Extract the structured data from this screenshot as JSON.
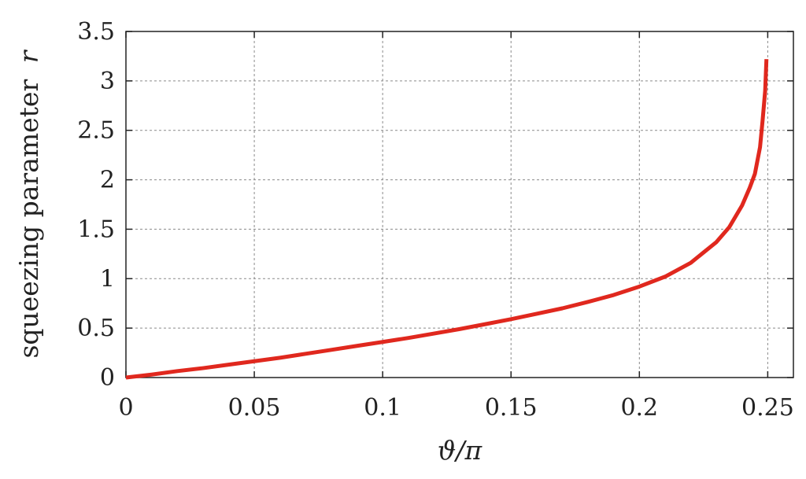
{
  "chart_data": {
    "type": "line",
    "title": "",
    "xlabel": "ϑ/π",
    "ylabel_main": "squeezing parameter",
    "ylabel_symbol": "r",
    "xlim": [
      0,
      0.26
    ],
    "ylim": [
      0,
      3.5
    ],
    "grid": true,
    "x_ticks": [
      "0",
      "0.05",
      "0.1",
      "0.15",
      "0.2",
      "0.25"
    ],
    "y_ticks": [
      "0",
      "0.5",
      "1",
      "1.5",
      "2",
      "2.5",
      "3",
      "3.5"
    ],
    "series": [
      {
        "color": "#e0281e",
        "x": [
          0,
          0.01,
          0.02,
          0.03,
          0.04,
          0.05,
          0.06,
          0.07,
          0.08,
          0.09,
          0.1,
          0.11,
          0.12,
          0.13,
          0.14,
          0.15,
          0.16,
          0.17,
          0.18,
          0.19,
          0.2,
          0.21,
          0.22,
          0.23,
          0.235,
          0.24,
          0.243,
          0.245,
          0.247,
          0.248,
          0.249,
          0.2495
        ],
        "y": [
          0,
          0.03,
          0.065,
          0.095,
          0.13,
          0.165,
          0.2,
          0.24,
          0.28,
          0.32,
          0.36,
          0.4,
          0.445,
          0.49,
          0.54,
          0.59,
          0.645,
          0.7,
          0.765,
          0.835,
          0.92,
          1.02,
          1.16,
          1.37,
          1.52,
          1.74,
          1.92,
          2.06,
          2.33,
          2.6,
          2.9,
          3.22
        ]
      }
    ]
  }
}
